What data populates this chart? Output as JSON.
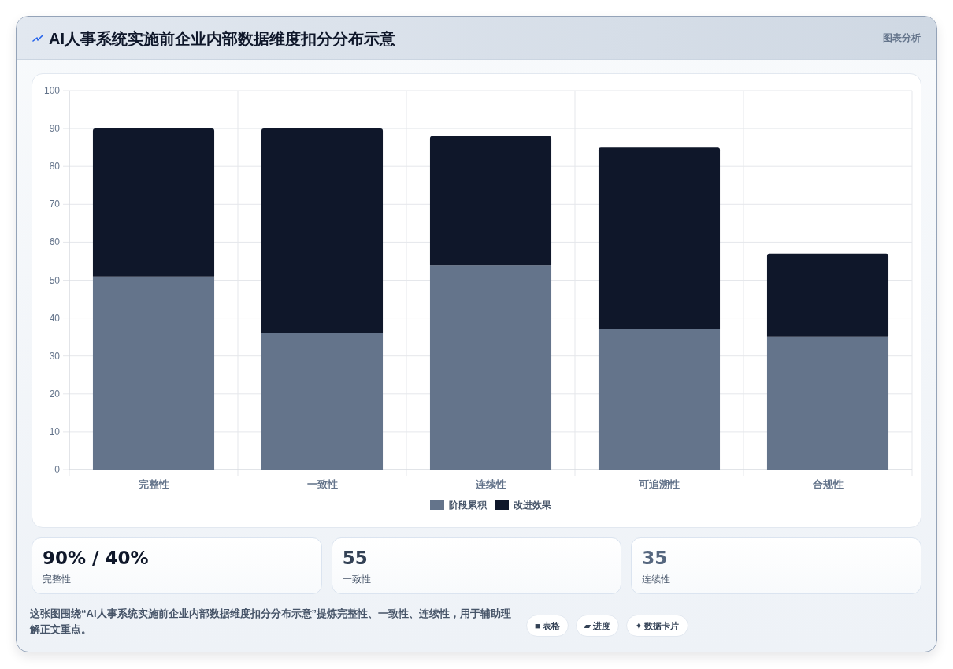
{
  "chart_data": [
    {
      "type": "bar",
      "title": "AI人事系统实施前企业内部数据维度扣分分布示意",
      "categories": [
        "完整性",
        "一致性",
        "连续性",
        "可追溯性",
        "合规性"
      ],
      "series": [
        {
          "name": "阶段累积",
          "color": "#64748b",
          "values": [
            51,
            36,
            54,
            37,
            35
          ]
        },
        {
          "name": "改进效果",
          "color": "#0f172a",
          "values": [
            39,
            54,
            34,
            48,
            22
          ]
        }
      ],
      "stacked": true,
      "ylim": [
        0,
        100
      ],
      "yticks": [
        0,
        10,
        20,
        30,
        40,
        50,
        60,
        70,
        80,
        90,
        100
      ],
      "grid": true,
      "legend": "bottom",
      "annotations": [
        "图表分析",
        "这张图围绕“AI人事系统实施前企业内部数据维度扣分分布示意”提炼完整性、一致性、连续性，用于辅助理解正文重点。",
        "■ 表格",
        "▰ 进度",
        "✦ 数据卡片"
      ]
    },
    {
      "type": "other",
      "title": "90% / 40%",
      "subtitle": "完整性"
    },
    {
      "type": "other",
      "title": "55",
      "subtitle": "一致性"
    },
    {
      "type": "other",
      "title": "35",
      "subtitle": "连续性"
    }
  ]
}
